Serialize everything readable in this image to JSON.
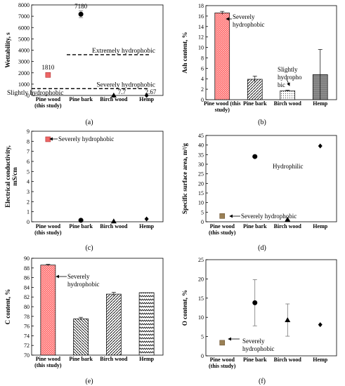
{
  "panels": [
    {
      "id": "a",
      "type": "scatter",
      "panel_label": "(a)",
      "ylabel": "Wettability, s",
      "ylim": [
        0,
        8000
      ],
      "yticks": [
        0,
        1000,
        2000,
        3000,
        4000,
        5000,
        6000,
        7000,
        8000
      ],
      "categories": [
        "Pine wood\n(this study)",
        "Pine bark",
        "Birch wood",
        "Hemp"
      ],
      "points": [
        {
          "category": 0,
          "value": 1810,
          "marker": "square",
          "color": "#ee6666",
          "edge": "#b03030",
          "label": "1810"
        },
        {
          "category": 1,
          "value": 7180,
          "marker": "circle",
          "color": "#000000",
          "err": 300,
          "label": "7180"
        },
        {
          "category": 2,
          "value": 7.7,
          "marker": "triangle",
          "color": "#000000",
          "label": "7.7"
        },
        {
          "category": 3,
          "value": 2.67,
          "marker": "diamond",
          "color": "#000000",
          "label": "2.67"
        }
      ],
      "reference_lines": [
        {
          "value": 3600,
          "label": "Extremely hydrophobic"
        },
        {
          "value": 600,
          "label": "Severely hydrophobic"
        }
      ],
      "annotations": [
        {
          "text": "Slightly hydrophobic"
        }
      ]
    },
    {
      "id": "b",
      "type": "bar",
      "panel_label": "(b)",
      "ylabel": "Ash content, %",
      "ylim": [
        0,
        18
      ],
      "yticks": [
        0,
        2,
        4,
        6,
        8,
        10,
        12,
        14,
        16,
        18
      ],
      "categories": [
        "Pine wood (this\nstudy)",
        "Pine bark",
        "Birch wood",
        "Hemp"
      ],
      "bars": [
        {
          "value": 16.6,
          "err": 0.3,
          "pattern": "red-grid"
        },
        {
          "value": 3.9,
          "err": 0.6,
          "pattern": "hatch"
        },
        {
          "value": 1.7,
          "err": 0.1,
          "pattern": "dots"
        },
        {
          "value": 4.8,
          "err": 4.8,
          "pattern": "gray"
        }
      ],
      "annotations": [
        {
          "text": "Severely\nhydrophobic"
        },
        {
          "text": "Slightly\nhydropho\nbic"
        }
      ]
    },
    {
      "id": "c",
      "type": "scatter",
      "panel_label": "(c)",
      "ylabel": "Electrical conductivity,\nmS/cm",
      "ylim": [
        0,
        9
      ],
      "yticks": [
        0,
        1,
        2,
        3,
        4,
        5,
        6,
        7,
        8,
        9
      ],
      "categories": [
        "Pine wood\n(this study)",
        "Pine bark",
        "Birch wood",
        "Hemp"
      ],
      "points": [
        {
          "category": 0,
          "value": 8.2,
          "marker": "square",
          "color": "#ee6666",
          "edge": "#b03030"
        },
        {
          "category": 1,
          "value": 0.15,
          "marker": "circle",
          "color": "#000000"
        },
        {
          "category": 2,
          "value": 0.05,
          "marker": "triangle",
          "color": "#000000"
        },
        {
          "category": 3,
          "value": 0.28,
          "marker": "diamond",
          "color": "#000000"
        }
      ],
      "annotations": [
        {
          "text": "Severely hydrophobic"
        }
      ]
    },
    {
      "id": "d",
      "type": "scatter",
      "panel_label": "(d)",
      "ylabel": "Specific surface area, m²/g",
      "ylim": [
        0,
        45
      ],
      "yticks": [
        0,
        5,
        10,
        15,
        20,
        25,
        30,
        35,
        40,
        45
      ],
      "categories": [
        "Pine wood\n(this study)",
        "Pine bark",
        "Birch wood",
        "Hemp"
      ],
      "points": [
        {
          "category": 0,
          "value": 3,
          "marker": "square",
          "color": "#9a8055",
          "edge": "#6a5030"
        },
        {
          "category": 1,
          "value": 34,
          "marker": "circle",
          "color": "#000000"
        },
        {
          "category": 2,
          "value": 1.2,
          "marker": "triangle",
          "color": "#000000"
        },
        {
          "category": 3,
          "value": 39.5,
          "marker": "diamond",
          "color": "#000000"
        }
      ],
      "annotations": [
        {
          "text": "Hydrophilic"
        },
        {
          "text": "Severely hydrophobic"
        }
      ]
    },
    {
      "id": "e",
      "type": "bar",
      "panel_label": "(e)",
      "ylabel": "C content, %",
      "ylim": [
        70,
        90
      ],
      "yticks": [
        70,
        72,
        74,
        76,
        78,
        80,
        82,
        84,
        86,
        88,
        90
      ],
      "categories": [
        "Pine wood\n(this study)",
        "Pine bark",
        "Birch wood",
        "Hemp"
      ],
      "bars": [
        {
          "value": 88.6,
          "err": 0.15,
          "pattern": "red-grid"
        },
        {
          "value": 77.5,
          "err": 0.3,
          "pattern": "hatch-back"
        },
        {
          "value": 82.6,
          "err": 0.35,
          "pattern": "hatch"
        },
        {
          "value": 82.9,
          "err": 0,
          "pattern": "zigzag"
        }
      ],
      "annotations": [
        {
          "text": "Severely\nhydrophobic"
        }
      ]
    },
    {
      "id": "f",
      "type": "scatter",
      "panel_label": "(f)",
      "ylabel": "O content, %",
      "ylim": [
        0,
        25
      ],
      "yticks": [
        0,
        5,
        10,
        15,
        20,
        25
      ],
      "categories": [
        "Pine wood\n(this study)",
        "Pine bark",
        "Birch wood",
        "Hemp"
      ],
      "points": [
        {
          "category": 0,
          "value": 3.4,
          "marker": "square",
          "color": "#9a8055",
          "edge": "#6a5030"
        },
        {
          "category": 1,
          "value": 13.8,
          "marker": "circle",
          "color": "#000000",
          "err_low": 6,
          "err_high": 6
        },
        {
          "category": 2,
          "value": 9.3,
          "marker": "triangle",
          "color": "#000000",
          "err_low": 4.2,
          "err_high": 4.2
        },
        {
          "category": 3,
          "value": 8.1,
          "marker": "diamond",
          "color": "#000000"
        }
      ],
      "annotations": [
        {
          "text": "Severely\nhydrophobic"
        }
      ]
    }
  ]
}
